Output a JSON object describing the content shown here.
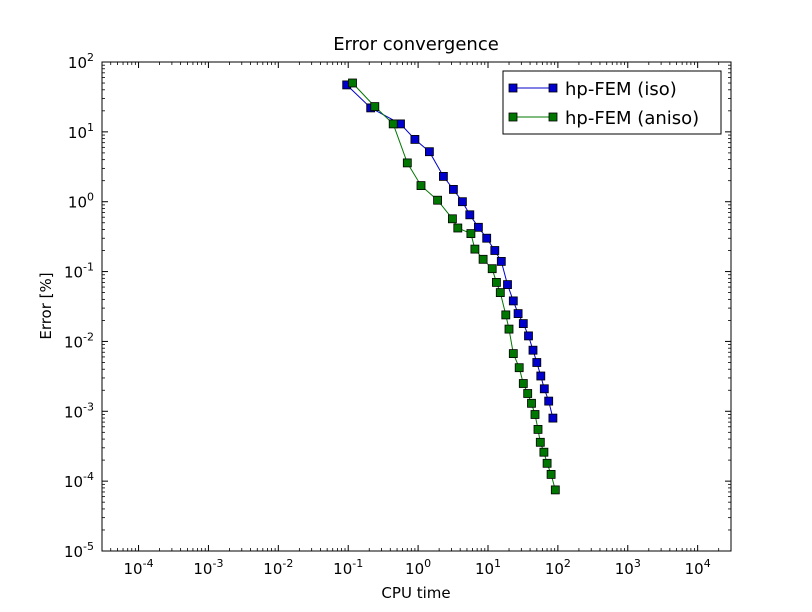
{
  "chart_data": {
    "type": "line",
    "title": "Error convergence",
    "xlabel": "CPU time",
    "ylabel": "Error [%]",
    "xscale": "log",
    "yscale": "log",
    "xlim": [
      3e-05,
      30000
    ],
    "ylim": [
      1e-05,
      100
    ],
    "grid": false,
    "legend_position": "top-right",
    "x_ticks": [
      {
        "value": 0.0001,
        "base": "10",
        "exp": "-4"
      },
      {
        "value": 0.001,
        "base": "10",
        "exp": "-3"
      },
      {
        "value": 0.01,
        "base": "10",
        "exp": "-2"
      },
      {
        "value": 0.1,
        "base": "10",
        "exp": "-1"
      },
      {
        "value": 1,
        "base": "10",
        "exp": "0"
      },
      {
        "value": 10,
        "base": "10",
        "exp": "1"
      },
      {
        "value": 100,
        "base": "10",
        "exp": "2"
      },
      {
        "value": 1000,
        "base": "10",
        "exp": "3"
      },
      {
        "value": 10000,
        "base": "10",
        "exp": "4"
      }
    ],
    "y_ticks": [
      {
        "value": 1e-05,
        "base": "10",
        "exp": "-5"
      },
      {
        "value": 0.0001,
        "base": "10",
        "exp": "-4"
      },
      {
        "value": 0.001,
        "base": "10",
        "exp": "-3"
      },
      {
        "value": 0.01,
        "base": "10",
        "exp": "-2"
      },
      {
        "value": 0.1,
        "base": "10",
        "exp": "-1"
      },
      {
        "value": 1,
        "base": "10",
        "exp": "0"
      },
      {
        "value": 10,
        "base": "10",
        "exp": "1"
      },
      {
        "value": 100,
        "base": "10",
        "exp": "2"
      }
    ],
    "series": [
      {
        "name": "hp-FEM (iso)",
        "color": "#0000cc",
        "marker": "square",
        "points": [
          [
            0.095,
            47
          ],
          [
            0.21,
            22
          ],
          [
            0.56,
            13
          ],
          [
            0.9,
            7.8
          ],
          [
            1.45,
            5.2
          ],
          [
            2.3,
            2.3
          ],
          [
            3.2,
            1.5
          ],
          [
            4.3,
            1.0
          ],
          [
            5.5,
            0.65
          ],
          [
            7.3,
            0.43
          ],
          [
            9.6,
            0.3
          ],
          [
            12.5,
            0.2
          ],
          [
            15.5,
            0.14
          ],
          [
            19,
            0.065
          ],
          [
            23,
            0.038
          ],
          [
            27,
            0.025
          ],
          [
            32,
            0.018
          ],
          [
            38,
            0.012
          ],
          [
            44,
            0.0075
          ],
          [
            50,
            0.005
          ],
          [
            57,
            0.0032
          ],
          [
            64,
            0.0021
          ],
          [
            74,
            0.0014
          ],
          [
            85,
            0.0008
          ]
        ]
      },
      {
        "name": "hp-FEM (aniso)",
        "color": "#007700",
        "marker": "square",
        "points": [
          [
            0.115,
            50
          ],
          [
            0.24,
            23
          ],
          [
            0.44,
            13
          ],
          [
            0.7,
            3.6
          ],
          [
            1.1,
            1.7
          ],
          [
            1.9,
            1.05
          ],
          [
            3.1,
            0.57
          ],
          [
            3.7,
            0.42
          ],
          [
            5.7,
            0.35
          ],
          [
            6.5,
            0.21
          ],
          [
            8.5,
            0.15
          ],
          [
            11.5,
            0.11
          ],
          [
            13.2,
            0.07
          ],
          [
            15,
            0.05
          ],
          [
            18,
            0.024
          ],
          [
            20,
            0.015
          ],
          [
            23,
            0.0067
          ],
          [
            28,
            0.0042
          ],
          [
            32,
            0.0025
          ],
          [
            37,
            0.0018
          ],
          [
            42,
            0.0013
          ],
          [
            47,
            0.0009
          ],
          [
            52,
            0.00055
          ],
          [
            56,
            0.00036
          ],
          [
            63,
            0.00026
          ],
          [
            70,
            0.00018
          ],
          [
            80,
            0.000125
          ],
          [
            92,
            7.5e-05
          ]
        ]
      }
    ]
  }
}
